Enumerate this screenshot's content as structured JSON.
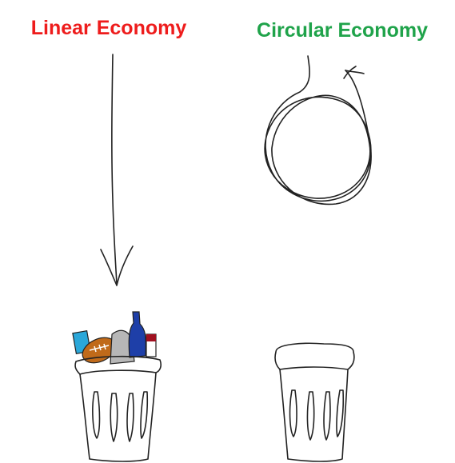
{
  "left": {
    "title": "Linear Economy"
  },
  "right": {
    "title": "Circular Economy"
  }
}
